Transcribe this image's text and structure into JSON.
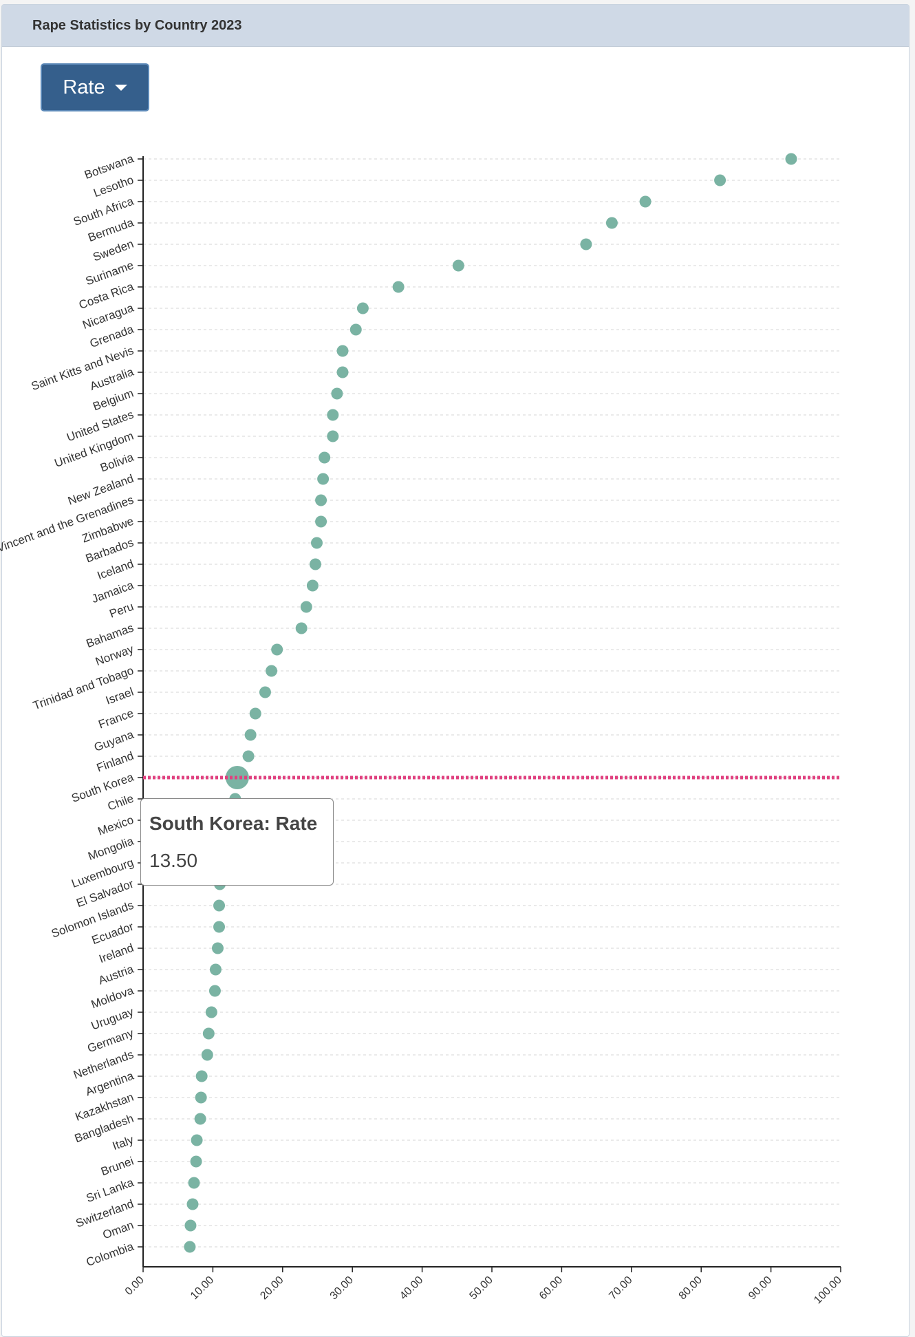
{
  "header": {
    "title": "Rape Statistics by Country 2023"
  },
  "dropdown": {
    "label": "Rate",
    "icon": "caret-down-icon"
  },
  "tooltip": {
    "title": "South Korea: Rate",
    "value": "13.50"
  },
  "colors": {
    "dot": "#7ab3a3",
    "highlight": "#e0407f",
    "button": "#355f8c",
    "header": "#cfd9e6"
  },
  "chart_data": {
    "type": "scatter",
    "title": "Rape Statistics by Country 2023",
    "xlabel": "",
    "ylabel": "",
    "xlim": [
      0,
      100
    ],
    "xticks": [
      "0.00",
      "10.00",
      "20.00",
      "30.00",
      "40.00",
      "50.00",
      "60.00",
      "70.00",
      "80.00",
      "90.00",
      "100.00"
    ],
    "grid": true,
    "highlighted": "South Korea",
    "categories": [
      "Botswana",
      "Lesotho",
      "South Africa",
      "Bermuda",
      "Sweden",
      "Suriname",
      "Costa Rica",
      "Nicaragua",
      "Grenada",
      "Saint Kitts and Nevis",
      "Australia",
      "Belgium",
      "United States",
      "United Kingdom",
      "Bolivia",
      "New Zealand",
      "Saint Vincent and the Grenadines",
      "Zimbabwe",
      "Barbados",
      "Iceland",
      "Jamaica",
      "Peru",
      "Bahamas",
      "Norway",
      "Trinidad and Tobago",
      "Israel",
      "France",
      "Guyana",
      "Finland",
      "South Korea",
      "Chile",
      "Mexico",
      "Mongolia",
      "Luxembourg",
      "El Salvador",
      "Solomon Islands",
      "Ecuador",
      "Ireland",
      "Austria",
      "Moldova",
      "Uruguay",
      "Germany",
      "Netherlands",
      "Argentina",
      "Kazakhstan",
      "Bangladesh",
      "Italy",
      "Brunei",
      "Sri Lanka",
      "Switzerland",
      "Oman",
      "Colombia"
    ],
    "values": [
      92.9,
      82.7,
      72.0,
      67.2,
      63.5,
      45.2,
      36.6,
      31.5,
      30.5,
      28.6,
      28.6,
      27.8,
      27.2,
      27.2,
      26.0,
      25.8,
      25.5,
      25.5,
      24.9,
      24.7,
      24.3,
      23.4,
      22.7,
      19.2,
      18.4,
      17.5,
      16.1,
      15.4,
      15.1,
      13.5,
      13.2,
      12.3,
      11.6,
      11.0,
      11.0,
      10.9,
      10.9,
      10.7,
      10.4,
      10.3,
      9.8,
      9.4,
      9.2,
      8.4,
      8.3,
      8.2,
      7.7,
      7.6,
      7.3,
      7.1,
      6.8,
      6.7
    ]
  }
}
